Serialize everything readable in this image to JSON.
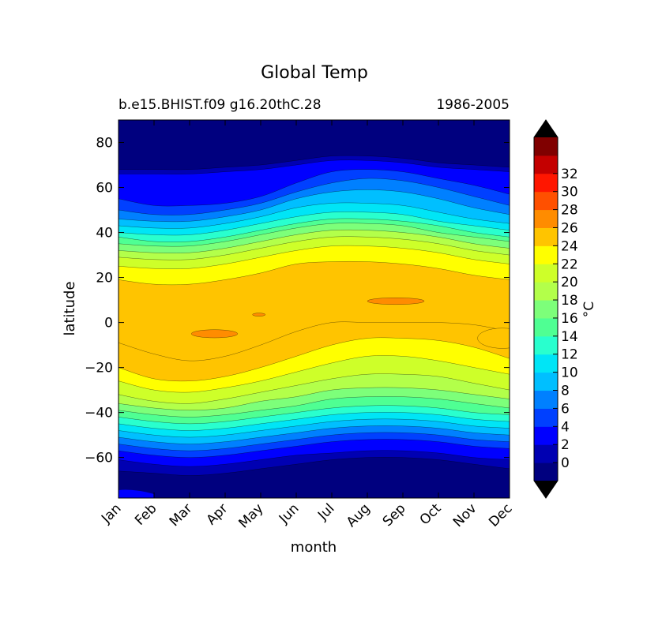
{
  "chart_data": {
    "type": "heatmap",
    "title": "Global Temp",
    "subtitle_left": "b.e15.BHIST.f09 g16.20thC.28",
    "subtitle_right": "1986-2005",
    "xlabel": "month",
    "ylabel": "latitude",
    "x_ticks": [
      "Jan",
      "Feb",
      "Mar",
      "Apr",
      "May",
      "Jun",
      "Jul",
      "Aug",
      "Sep",
      "Oct",
      "Nov",
      "Dec"
    ],
    "ylim": [
      -78,
      90
    ],
    "y_ticks": [
      80,
      60,
      40,
      20,
      0,
      -20,
      -40,
      -60
    ],
    "colorbar": {
      "label": "°C",
      "levels": [
        -2,
        0,
        2,
        4,
        6,
        8,
        10,
        12,
        14,
        16,
        18,
        20,
        22,
        24,
        26,
        28,
        30,
        32,
        34
      ],
      "tick_labels": [
        "0",
        "2",
        "4",
        "6",
        "8",
        "10",
        "12",
        "14",
        "16",
        "18",
        "20",
        "22",
        "24",
        "26",
        "28",
        "30",
        "32"
      ],
      "colors": [
        "#00007f",
        "#0000b2",
        "#0000ff",
        "#0040ff",
        "#0080ff",
        "#00bfff",
        "#00e5f6",
        "#29ffce",
        "#4fff93",
        "#7dff7a",
        "#b3ff4a",
        "#ceff29",
        "#ffff00",
        "#ffc400",
        "#ff8c00",
        "#ff5000",
        "#ff1600",
        "#c40000",
        "#800000"
      ],
      "extend_colors": {
        "under": "#000000",
        "over": "#000000"
      }
    },
    "grid": false,
    "isotherm_latitudes": {
      "months": [
        0,
        1,
        2,
        3,
        4,
        5,
        6,
        7,
        8,
        9,
        10,
        11
      ],
      "north": [
        {
          "level": 0,
          "lat": [
            68,
            68,
            68,
            69,
            70,
            72,
            74,
            74,
            73,
            71,
            70,
            69
          ]
        },
        {
          "level": 2,
          "lat": [
            66,
            66,
            66,
            67,
            68,
            70,
            72,
            72,
            71,
            69,
            68,
            67
          ]
        },
        {
          "level": 4,
          "lat": [
            55,
            52,
            52,
            53,
            56,
            62,
            67,
            68,
            67,
            64,
            61,
            57
          ]
        },
        {
          "level": 6,
          "lat": [
            50,
            48,
            48,
            50,
            53,
            58,
            62,
            64,
            63,
            60,
            56,
            52
          ]
        },
        {
          "level": 8,
          "lat": [
            46,
            45,
            45,
            47,
            50,
            55,
            58,
            59,
            58,
            55,
            51,
            48
          ]
        },
        {
          "level": 10,
          "lat": [
            43,
            42,
            42,
            44,
            47,
            51,
            53,
            53,
            52,
            49,
            46,
            44
          ]
        },
        {
          "level": 12,
          "lat": [
            40,
            39,
            39,
            41,
            44,
            47,
            49,
            49,
            48,
            45,
            43,
            41
          ]
        },
        {
          "level": 14,
          "lat": [
            38,
            36,
            36,
            38,
            41,
            44,
            46,
            46,
            45,
            43,
            40,
            38
          ]
        },
        {
          "level": 16,
          "lat": [
            35,
            34,
            34,
            36,
            39,
            42,
            44,
            44,
            43,
            40,
            38,
            36
          ]
        },
        {
          "level": 18,
          "lat": [
            32,
            31,
            31,
            33,
            36,
            39,
            41,
            41,
            40,
            38,
            35,
            33
          ]
        },
        {
          "level": 20,
          "lat": [
            29,
            28,
            28,
            30,
            33,
            36,
            38,
            38,
            37,
            35,
            32,
            30
          ]
        },
        {
          "level": 22,
          "lat": [
            25,
            24,
            24,
            26,
            29,
            32,
            34,
            34,
            33,
            31,
            28,
            26
          ]
        },
        {
          "level": 24,
          "lat": [
            19,
            17,
            17,
            19,
            22,
            26,
            27,
            27,
            26,
            24,
            21,
            19
          ]
        }
      ],
      "south": [
        {
          "level": 24,
          "lat": [
            -9,
            -14,
            -17,
            -15,
            -10,
            -4,
            0,
            0,
            0,
            0,
            -1,
            -4
          ]
        },
        {
          "level": 22,
          "lat": [
            -20,
            -25,
            -26,
            -24,
            -20,
            -15,
            -10,
            -7,
            -7,
            -8,
            -11,
            -16
          ]
        },
        {
          "level": 20,
          "lat": [
            -26,
            -30,
            -31,
            -29,
            -26,
            -22,
            -18,
            -15,
            -15,
            -17,
            -20,
            -23
          ]
        },
        {
          "level": 18,
          "lat": [
            -32,
            -35,
            -36,
            -34,
            -31,
            -28,
            -25,
            -23,
            -23,
            -24,
            -27,
            -30
          ]
        },
        {
          "level": 16,
          "lat": [
            -36,
            -38,
            -39,
            -38,
            -35,
            -33,
            -30,
            -29,
            -29,
            -30,
            -32,
            -34
          ]
        },
        {
          "level": 14,
          "lat": [
            -39,
            -41,
            -42,
            -41,
            -39,
            -37,
            -34,
            -33,
            -33,
            -34,
            -36,
            -38
          ]
        },
        {
          "level": 12,
          "lat": [
            -42,
            -44,
            -45,
            -44,
            -42,
            -40,
            -38,
            -37,
            -37,
            -38,
            -40,
            -41
          ]
        },
        {
          "level": 10,
          "lat": [
            -45,
            -47,
            -48,
            -47,
            -45,
            -43,
            -41,
            -40,
            -40,
            -41,
            -43,
            -44
          ]
        },
        {
          "level": 8,
          "lat": [
            -48,
            -50,
            -51,
            -50,
            -48,
            -46,
            -44,
            -43,
            -43,
            -44,
            -46,
            -47
          ]
        },
        {
          "level": 6,
          "lat": [
            -51,
            -53,
            -54,
            -53,
            -51,
            -49,
            -47,
            -46,
            -46,
            -47,
            -49,
            -50
          ]
        },
        {
          "level": 4,
          "lat": [
            -54,
            -56,
            -57,
            -56,
            -54,
            -52,
            -50,
            -49,
            -49,
            -50,
            -52,
            -53
          ]
        },
        {
          "level": 2,
          "lat": [
            -57,
            -59,
            -60,
            -59,
            -57,
            -55,
            -53,
            -52,
            -52,
            -53,
            -55,
            -56
          ]
        },
        {
          "level": 0,
          "lat": [
            -61,
            -63,
            -64,
            -63,
            -61,
            -59,
            -58,
            -57,
            -57,
            -58,
            -60,
            -61
          ]
        },
        {
          "level": -2,
          "lat": [
            -66,
            -67,
            -68,
            -67,
            -65,
            -63,
            -61,
            -60,
            -60,
            -61,
            -63,
            -65
          ]
        }
      ]
    },
    "warm_patches": [
      {
        "level": 26,
        "month": 2.7,
        "lat": -5,
        "dmonth": 0.65,
        "dlat": 1.8
      },
      {
        "level": 26,
        "month": 7.8,
        "lat": 9.5,
        "dmonth": 0.8,
        "dlat": 1.5
      },
      {
        "level": 26,
        "month": 3.95,
        "lat": 3.5,
        "dmonth": 0.18,
        "dlat": 0.7
      },
      {
        "level": 24,
        "month": 10.8,
        "lat": -7,
        "dmonth": 0.7,
        "dlat": 4.5
      }
    ]
  }
}
